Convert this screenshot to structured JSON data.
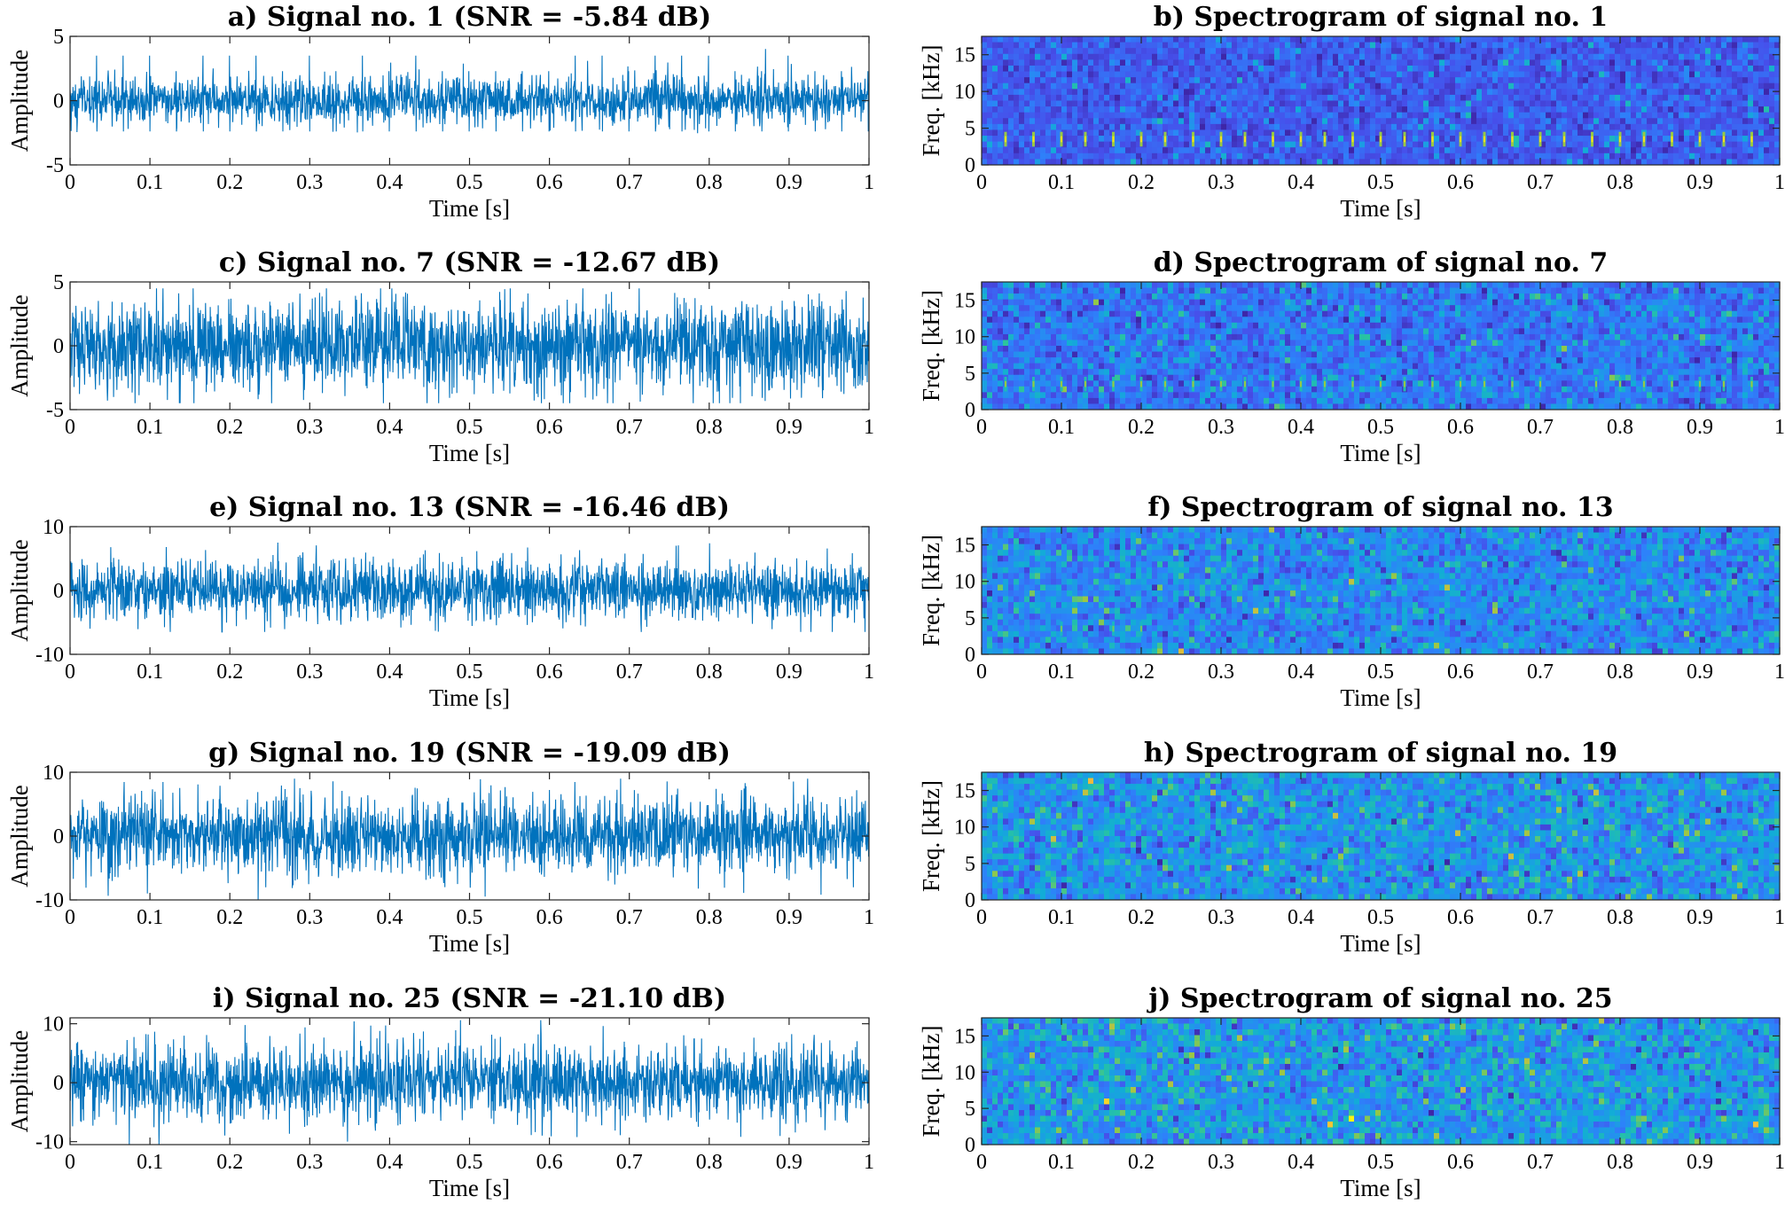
{
  "chart_data": [
    {
      "id": "a",
      "type": "line",
      "title": "a) Signal no. 1 (SNR = -5.84 dB)",
      "xlabel": "Time [s]",
      "ylabel": "Amplitude",
      "xlim": [
        0,
        1
      ],
      "ylim": [
        -5,
        5
      ],
      "xticks": [
        "0",
        "0.1",
        "0.2",
        "0.3",
        "0.4",
        "0.5",
        "0.6",
        "0.7",
        "0.8",
        "0.9",
        "1"
      ],
      "yticks": [
        {
          "v": -5,
          "label": "-5"
        },
        {
          "v": 0,
          "label": "0"
        },
        {
          "v": 5,
          "label": "5"
        }
      ],
      "signal": {
        "noise_amplitude": 1.0,
        "impulse_period_s": 0.0333,
        "impulse_first_s": 0.033,
        "impulse_amplitude": 3.0,
        "peak_min": -4.2,
        "peak_max": 4.2
      },
      "color": "#0072BD"
    },
    {
      "id": "b",
      "type": "heatmap",
      "title": "b) Spectrogram of signal no. 1",
      "xlabel": "Time [s]",
      "ylabel": "Freq. [kHz]",
      "xlim": [
        0,
        1
      ],
      "ylim": [
        0,
        17.5
      ],
      "xticks": [
        "0",
        "0.1",
        "0.2",
        "0.3",
        "0.4",
        "0.5",
        "0.6",
        "0.7",
        "0.8",
        "0.9",
        "1"
      ],
      "yticks": [
        {
          "v": 0,
          "label": "0"
        },
        {
          "v": 5,
          "label": "5"
        },
        {
          "v": 10,
          "label": "10"
        },
        {
          "v": 15,
          "label": "15"
        }
      ],
      "spectrogram": {
        "background_level": 0.18,
        "noise_spread": 0.12,
        "impulse_times_s": [
          0.03,
          0.065,
          0.1,
          0.13,
          0.165,
          0.2,
          0.23,
          0.265,
          0.3,
          0.33,
          0.365,
          0.4,
          0.43,
          0.465,
          0.5,
          0.53,
          0.565,
          0.6,
          0.63,
          0.665,
          0.7,
          0.73,
          0.765,
          0.8,
          0.83,
          0.865,
          0.9,
          0.93,
          0.965
        ],
        "impulse_freq_khz": [
          2.5,
          4.5
        ],
        "impulse_level": 0.75
      },
      "colormap": "parula"
    },
    {
      "id": "c",
      "type": "line",
      "title": "c) Signal no. 7 (SNR = -12.67 dB)",
      "xlabel": "Time [s]",
      "ylabel": "Amplitude",
      "xlim": [
        0,
        1
      ],
      "ylim": [
        -5,
        5
      ],
      "xticks": [
        "0",
        "0.1",
        "0.2",
        "0.3",
        "0.4",
        "0.5",
        "0.6",
        "0.7",
        "0.8",
        "0.9",
        "1"
      ],
      "yticks": [
        {
          "v": -5,
          "label": "-5"
        },
        {
          "v": 0,
          "label": "0"
        },
        {
          "v": 5,
          "label": "5"
        }
      ],
      "signal": {
        "noise_amplitude": 2.0,
        "impulse_period_s": 0.0333,
        "impulse_first_s": 0.033,
        "impulse_amplitude": 1.5,
        "peak_min": -4.5,
        "peak_max": 4.5
      },
      "color": "#0072BD"
    },
    {
      "id": "d",
      "type": "heatmap",
      "title": "d) Spectrogram of signal no. 7",
      "xlabel": "Time [s]",
      "ylabel": "Freq. [kHz]",
      "xlim": [
        0,
        1
      ],
      "ylim": [
        0,
        17.5
      ],
      "xticks": [
        "0",
        "0.1",
        "0.2",
        "0.3",
        "0.4",
        "0.5",
        "0.6",
        "0.7",
        "0.8",
        "0.9",
        "1"
      ],
      "yticks": [
        {
          "v": 0,
          "label": "0"
        },
        {
          "v": 5,
          "label": "5"
        },
        {
          "v": 10,
          "label": "10"
        },
        {
          "v": 15,
          "label": "15"
        }
      ],
      "spectrogram": {
        "background_level": 0.26,
        "noise_spread": 0.16,
        "impulse_times_s": [
          0.03,
          0.065,
          0.1,
          0.13,
          0.165,
          0.2,
          0.23,
          0.265,
          0.3,
          0.33,
          0.365,
          0.4,
          0.43,
          0.465,
          0.5,
          0.53,
          0.565,
          0.6,
          0.63,
          0.665,
          0.7,
          0.77,
          0.8,
          0.83,
          0.865,
          0.9,
          0.93,
          0.965
        ],
        "impulse_freq_khz": [
          2.5,
          4.5
        ],
        "impulse_level": 0.55
      },
      "colormap": "parula"
    },
    {
      "id": "e",
      "type": "line",
      "title": "e) Signal no. 13 (SNR = -16.46 dB)",
      "xlabel": "Time [s]",
      "ylabel": "Amplitude",
      "xlim": [
        0,
        1
      ],
      "ylim": [
        -10,
        10
      ],
      "xticks": [
        "0",
        "0.1",
        "0.2",
        "0.3",
        "0.4",
        "0.5",
        "0.6",
        "0.7",
        "0.8",
        "0.9",
        "1"
      ],
      "yticks": [
        {
          "v": -10,
          "label": "-10"
        },
        {
          "v": 0,
          "label": "0"
        },
        {
          "v": 10,
          "label": "10"
        }
      ],
      "signal": {
        "noise_amplitude": 2.6,
        "impulse_period_s": 0.0333,
        "impulse_first_s": 0.033,
        "impulse_amplitude": 0.8,
        "peak_min": -6.5,
        "peak_max": 7.5
      },
      "color": "#0072BD"
    },
    {
      "id": "f",
      "type": "heatmap",
      "title": "f) Spectrogram of signal no. 13",
      "xlabel": "Time [s]",
      "ylabel": "Freq. [kHz]",
      "xlim": [
        0,
        1
      ],
      "ylim": [
        0,
        17.5
      ],
      "xticks": [
        "0",
        "0.1",
        "0.2",
        "0.3",
        "0.4",
        "0.5",
        "0.6",
        "0.7",
        "0.8",
        "0.9",
        "1"
      ],
      "yticks": [
        {
          "v": 0,
          "label": "0"
        },
        {
          "v": 5,
          "label": "5"
        },
        {
          "v": 10,
          "label": "10"
        },
        {
          "v": 15,
          "label": "15"
        }
      ],
      "spectrogram": {
        "background_level": 0.32,
        "noise_spread": 0.18,
        "impulse_times_s": [
          0.1,
          0.165,
          0.2
        ],
        "impulse_freq_khz": [
          2.5,
          4.5
        ],
        "impulse_level": 0.5
      },
      "colormap": "parula"
    },
    {
      "id": "g",
      "type": "line",
      "title": "g) Signal no. 19 (SNR = -19.09 dB)",
      "xlabel": "Time [s]",
      "ylabel": "Amplitude",
      "xlim": [
        0,
        1
      ],
      "ylim": [
        -10,
        10
      ],
      "xticks": [
        "0",
        "0.1",
        "0.2",
        "0.3",
        "0.4",
        "0.5",
        "0.6",
        "0.7",
        "0.8",
        "0.9",
        "1"
      ],
      "yticks": [
        {
          "v": -10,
          "label": "-10"
        },
        {
          "v": 0,
          "label": "0"
        },
        {
          "v": 10,
          "label": "10"
        }
      ],
      "signal": {
        "noise_amplitude": 3.4,
        "impulse_period_s": 0.0333,
        "impulse_first_s": 0.033,
        "impulse_amplitude": 0.5,
        "peak_min": -10,
        "peak_max": 9
      },
      "color": "#0072BD"
    },
    {
      "id": "h",
      "type": "heatmap",
      "title": "h) Spectrogram of signal no. 19",
      "xlabel": "Time [s]",
      "ylabel": "Freq. [kHz]",
      "xlim": [
        0,
        1
      ],
      "ylim": [
        0,
        17.5
      ],
      "xticks": [
        "0",
        "0.1",
        "0.2",
        "0.3",
        "0.4",
        "0.5",
        "0.6",
        "0.7",
        "0.8",
        "0.9",
        "1"
      ],
      "yticks": [
        {
          "v": 0,
          "label": "0"
        },
        {
          "v": 5,
          "label": "5"
        },
        {
          "v": 10,
          "label": "10"
        },
        {
          "v": 15,
          "label": "15"
        }
      ],
      "spectrogram": {
        "background_level": 0.36,
        "noise_spread": 0.2,
        "impulse_times_s": [],
        "impulse_freq_khz": [
          2.5,
          4.5
        ],
        "impulse_level": 0.5
      },
      "colormap": "parula"
    },
    {
      "id": "i",
      "type": "line",
      "title": "i) Signal no. 25 (SNR = -21.10 dB)",
      "xlabel": "Time [s]",
      "ylabel": "Amplitude",
      "xlim": [
        0,
        1
      ],
      "ylim": [
        -10.5,
        11
      ],
      "xticks": [
        "0",
        "0.1",
        "0.2",
        "0.3",
        "0.4",
        "0.5",
        "0.6",
        "0.7",
        "0.8",
        "0.9",
        "1"
      ],
      "yticks": [
        {
          "v": -10,
          "label": "-10"
        },
        {
          "v": 0,
          "label": "0"
        },
        {
          "v": 10,
          "label": "10"
        }
      ],
      "signal": {
        "noise_amplitude": 3.6,
        "impulse_period_s": 0.0333,
        "impulse_first_s": 0.033,
        "impulse_amplitude": 0.3,
        "peak_min": -10.5,
        "peak_max": 11
      },
      "color": "#0072BD"
    },
    {
      "id": "j",
      "type": "heatmap",
      "title": "j) Spectrogram of signal no. 25",
      "xlabel": "Time [s]",
      "ylabel": "Freq. [kHz]",
      "xlim": [
        0,
        1
      ],
      "ylim": [
        0,
        17.5
      ],
      "xticks": [
        "0",
        "0.1",
        "0.2",
        "0.3",
        "0.4",
        "0.5",
        "0.6",
        "0.7",
        "0.8",
        "0.9",
        "1"
      ],
      "yticks": [
        {
          "v": 0,
          "label": "0"
        },
        {
          "v": 5,
          "label": "5"
        },
        {
          "v": 10,
          "label": "10"
        },
        {
          "v": 15,
          "label": "15"
        }
      ],
      "spectrogram": {
        "background_level": 0.38,
        "noise_spread": 0.2,
        "impulse_times_s": [],
        "impulse_freq_khz": [
          2.5,
          4.5
        ],
        "impulse_level": 0.5
      },
      "colormap": "parula"
    }
  ]
}
